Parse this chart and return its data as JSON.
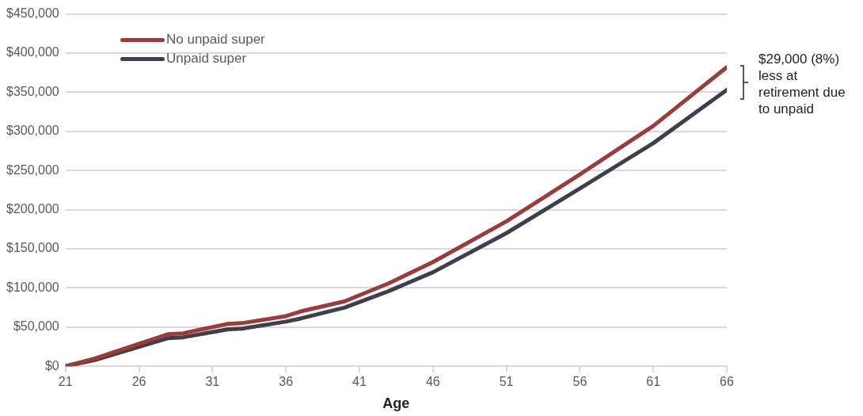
{
  "chart_data": {
    "type": "line",
    "xlabel": "Age",
    "x": [
      21,
      23,
      28,
      29,
      32,
      33,
      36,
      37,
      40,
      43,
      46,
      51,
      56,
      61,
      66
    ],
    "series": [
      {
        "name": "No unpaid super",
        "color": "#9e3a3a",
        "values": [
          0,
          10000,
          41000,
          42000,
          54000,
          55000,
          64000,
          70000,
          83000,
          106000,
          133000,
          185000,
          245000,
          307000,
          382000
        ]
      },
      {
        "name": "Unpaid super",
        "color": "#3d3f4c",
        "values": [
          0,
          8000,
          36000,
          37000,
          47000,
          48000,
          57000,
          61000,
          75000,
          96000,
          120000,
          170000,
          227000,
          285000,
          353000
        ]
      }
    ],
    "xlim": [
      21,
      66
    ],
    "xticks": [
      21,
      26,
      31,
      36,
      41,
      46,
      51,
      56,
      61,
      66
    ],
    "ylim": [
      0,
      450000
    ],
    "yticks": [
      {
        "value": 0,
        "label": "$0"
      },
      {
        "value": 50000,
        "label": "$50,000"
      },
      {
        "value": 100000,
        "label": "$100,000"
      },
      {
        "value": 150000,
        "label": "$150,000"
      },
      {
        "value": 200000,
        "label": "$200,000"
      },
      {
        "value": 250000,
        "label": "$250,000"
      },
      {
        "value": 300000,
        "label": "$300,000"
      },
      {
        "value": 350000,
        "label": "$350,000"
      },
      {
        "value": 400000,
        "label": "$400,000"
      },
      {
        "value": 450000,
        "label": "$450,000"
      }
    ],
    "grid": "y",
    "legend": "top left",
    "marker": "none",
    "line_style": "solid",
    "annotations": [
      "$29,000 (8%) less at retirement due to unpaid"
    ]
  }
}
